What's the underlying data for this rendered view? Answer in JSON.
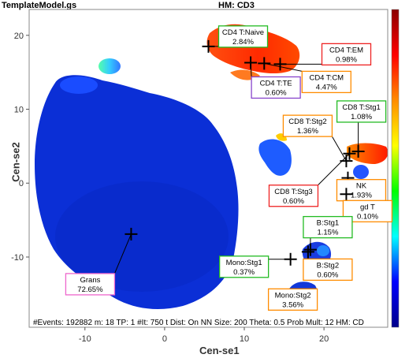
{
  "header": {
    "file": "TemplateModel.gs",
    "heatmap": "HM: CD3"
  },
  "chart_data": {
    "type": "scatter",
    "xlabel": "Cen-se1",
    "ylabel": "Cen-se2",
    "xlim": [
      -17,
      28
    ],
    "ylim": [
      -19.5,
      23.5
    ],
    "xticks": [
      -10,
      0,
      10,
      20
    ],
    "yticks": [
      -10,
      0,
      10,
      20
    ],
    "grid": false,
    "colorbar": {
      "orientation": "vertical",
      "colors": [
        "#8b0000",
        "#ff0000",
        "#ff8c00",
        "#ffff00",
        "#00ff00",
        "#00ffff",
        "#0000ff",
        "#00008b"
      ]
    },
    "footer_text": "#Events: 192882 m: 18 TP: 1 #It: 750 t Dist: On NN Size: 200 Theta: 0.5 Prob Mult: 12 HM: CD",
    "populations": [
      {
        "name": "CD4 T:Naive",
        "percent": "2.84%",
        "x": 5.5,
        "y": 18.5,
        "border": "#22bb22"
      },
      {
        "name": "CD4 T:EM",
        "percent": "0.98%",
        "x": 14.5,
        "y": 16.1,
        "border": "#ee2222"
      },
      {
        "name": "CD4 T:CM",
        "percent": "4.47%",
        "x": 12.5,
        "y": 16.2,
        "border": "#ff8c00"
      },
      {
        "name": "CD4 T:TE",
        "percent": "0.60%",
        "x": 10.8,
        "y": 16.3,
        "border": "#8844cc"
      },
      {
        "name": "CD8 T:Stg2",
        "percent": "1.36%",
        "x": 22.8,
        "y": 3.0,
        "border": "#ff8c00"
      },
      {
        "name": "CD8 T:Stg1",
        "percent": "1.08%",
        "x": 24.3,
        "y": 4.3,
        "border": "#22bb22"
      },
      {
        "name": "NK",
        "percent": "1.93%",
        "x": 23.0,
        "y": 0.7,
        "border": "#ff8c00"
      },
      {
        "name": "gd T",
        "percent": "0.10%",
        "x": 22.8,
        "y": -1.5,
        "border": "#ff8c00"
      },
      {
        "name": "CD8 T:Stg3",
        "percent": "0.60%",
        "x": 23.2,
        "y": 4.0,
        "border": "#ee2222"
      },
      {
        "name": "B:Stg1",
        "percent": "1.15%",
        "x": 18.3,
        "y": -9.0,
        "border": "#22bb22"
      },
      {
        "name": "B:Stg2",
        "percent": "0.60%",
        "x": 18.0,
        "y": -9.3,
        "border": "#ff8c00"
      },
      {
        "name": "Mono:Stg1",
        "percent": "0.37%",
        "x": 15.8,
        "y": -10.3,
        "border": "#22bb22"
      },
      {
        "name": "Mono:Stg2",
        "percent": "3.56%",
        "x": 15.5,
        "y": -15.8,
        "border": "#ff8c00"
      },
      {
        "name": "Grans",
        "percent": "72.65%",
        "x": -4.2,
        "y": -6.9,
        "border": "#ee66cc"
      }
    ]
  }
}
